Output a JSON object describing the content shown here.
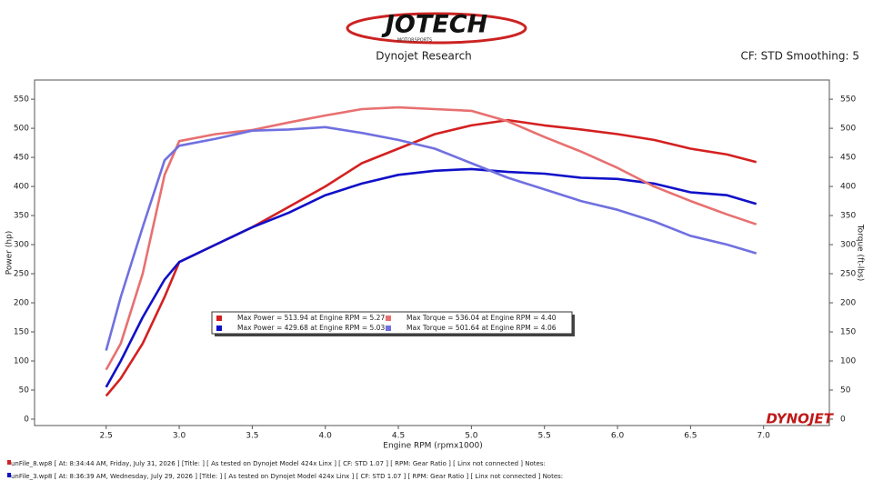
{
  "header": {
    "logo": "JOTECH",
    "logo_sub": "MOTORSPORTS",
    "center": "Dynojet Research",
    "right": "CF: STD Smoothing: 5"
  },
  "brand": "DYNOJET",
  "footer": [
    {
      "text": "unFile_8.wp8 [ At: 8:34:44 AM, Friday, July 31, 2026 ] [Title: ]  [ As tested on Dynojet Model 424x Linx ]  [ CF: STD 1.07 ]  [ RPM: Gear Ratio ]  [ Linx not connected ]  Notes:",
      "color": "#d42020"
    },
    {
      "text": "unFile_3.wp8 [ At: 8:36:39 AM, Wednesday, July 29, 2026 ] [Title: ]  [ As tested on Dynojet Model 424x Linx ]  [ CF: STD 1.07 ]  [ RPM: Gear Ratio ]  [ Linx not connected ]  Notes:",
      "color": "#1010c8"
    }
  ],
  "chart_data": {
    "type": "line",
    "xlabel": "Engine RPM (rpmx1000)",
    "ylabel": "Power (hp)",
    "y2label": "Torque (ft-lbs)",
    "x": [
      2.5,
      2.6,
      2.75,
      2.9,
      3.0,
      3.25,
      3.5,
      3.75,
      4.0,
      4.25,
      4.5,
      4.75,
      5.0,
      5.25,
      5.5,
      5.75,
      6.0,
      6.25,
      6.5,
      6.75,
      6.95
    ],
    "series": [
      {
        "name": "Max Power = 513.94 at Engine RPM = 5.27",
        "color": "#d42020",
        "values": [
          40,
          70,
          130,
          210,
          270,
          300,
          330,
          365,
          400,
          440,
          465,
          490,
          505,
          514,
          505,
          498,
          490,
          480,
          465,
          455,
          442
        ]
      },
      {
        "name": "Max Power = 429.68 at Engine RPM = 5.03",
        "color": "#1010c8",
        "values": [
          55,
          100,
          175,
          240,
          270,
          300,
          330,
          355,
          385,
          405,
          420,
          427,
          430,
          425,
          422,
          415,
          413,
          405,
          390,
          385,
          370
        ]
      },
      {
        "name": "Max Torque = 536.04 at Engine RPM = 4.40",
        "color": "#e87070",
        "axis": "y2",
        "values": [
          85,
          130,
          250,
          420,
          478,
          490,
          497,
          510,
          522,
          533,
          536,
          533,
          530,
          512,
          485,
          460,
          432,
          400,
          375,
          352,
          335
        ]
      },
      {
        "name": "Max Torque = 501.64 at Engine RPM = 4.06",
        "color": "#7070e0",
        "axis": "y2",
        "values": [
          118,
          210,
          330,
          445,
          470,
          482,
          496,
          498,
          502,
          492,
          480,
          465,
          440,
          415,
          395,
          375,
          360,
          340,
          315,
          300,
          285
        ]
      }
    ],
    "xlim": [
      2.01,
      7.45
    ],
    "xticks": [
      2.5,
      {
        "value": 3,
        "label": "3.0"
      },
      3.5,
      {
        "value": 4,
        "label": "4.0"
      },
      4.5,
      {
        "value": 5,
        "label": "5.0"
      },
      5.5,
      {
        "value": 6,
        "label": "6.0"
      },
      6.5,
      {
        "value": 7,
        "label": "7.0"
      }
    ],
    "ylim": [
      -11,
      583
    ],
    "yticks": [
      0,
      50,
      100,
      150,
      200,
      250,
      300,
      350,
      400,
      450,
      500,
      550
    ],
    "y2lim": [
      -11,
      583
    ],
    "y2ticks": [
      0,
      50,
      100,
      150,
      200,
      250,
      300,
      350,
      400,
      450,
      500,
      550
    ]
  }
}
